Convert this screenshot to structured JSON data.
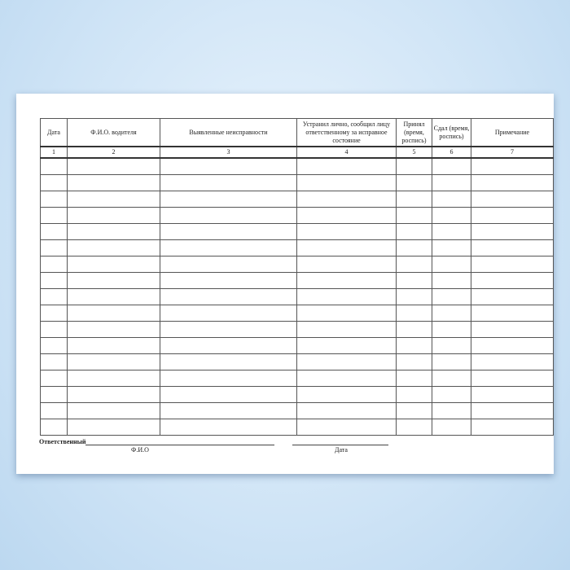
{
  "table": {
    "headers": [
      "Дата",
      "Ф.И.О. водителя",
      "Выявленные неисправности",
      "Устранил лично, сообщил лицу ответственному за исправное состояние",
      "Принял (время, роспись)",
      "Сдал (время, роспись)",
      "Примечание"
    ],
    "numbers": [
      "1",
      "2",
      "3",
      "4",
      "5",
      "6",
      "7"
    ],
    "empty_rows": 17
  },
  "footer": {
    "responsible_label": "Ответственный",
    "name_caption": "Ф.И.О",
    "date_caption": "Дата"
  }
}
